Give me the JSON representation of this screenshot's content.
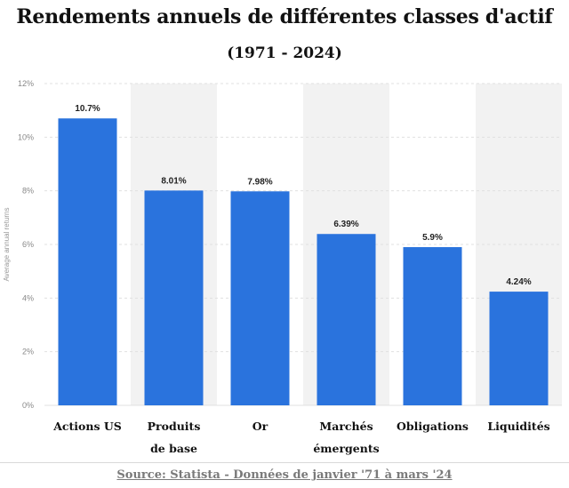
{
  "title": "Rendements annuels de différentes classes d'actif",
  "subtitle": "(1971 - 2024)",
  "source": "Source: Statista - Données de janvier '71 à mars '24",
  "colors": {
    "bar": "#2a73dd",
    "band": "#f2f2f2",
    "grid": "#e0e0e0"
  },
  "chart_data": {
    "type": "bar",
    "ylabel": "Average annual returns",
    "ylim": [
      0,
      12
    ],
    "yticks": [
      "0%",
      "2%",
      "4%",
      "6%",
      "8%",
      "10%",
      "12%"
    ],
    "categories": [
      [
        "Actions US"
      ],
      [
        "Produits",
        "de base"
      ],
      [
        "Or"
      ],
      [
        "Marchés",
        "émergents"
      ],
      [
        "Obligations"
      ],
      [
        "Liquidités"
      ]
    ],
    "values": [
      10.7,
      8.01,
      7.98,
      6.39,
      5.9,
      4.24
    ],
    "value_labels": [
      "10.7%",
      "8.01%",
      "7.98%",
      "6.39%",
      "5.9%",
      "4.24%"
    ],
    "grid": true,
    "legend": "none"
  }
}
